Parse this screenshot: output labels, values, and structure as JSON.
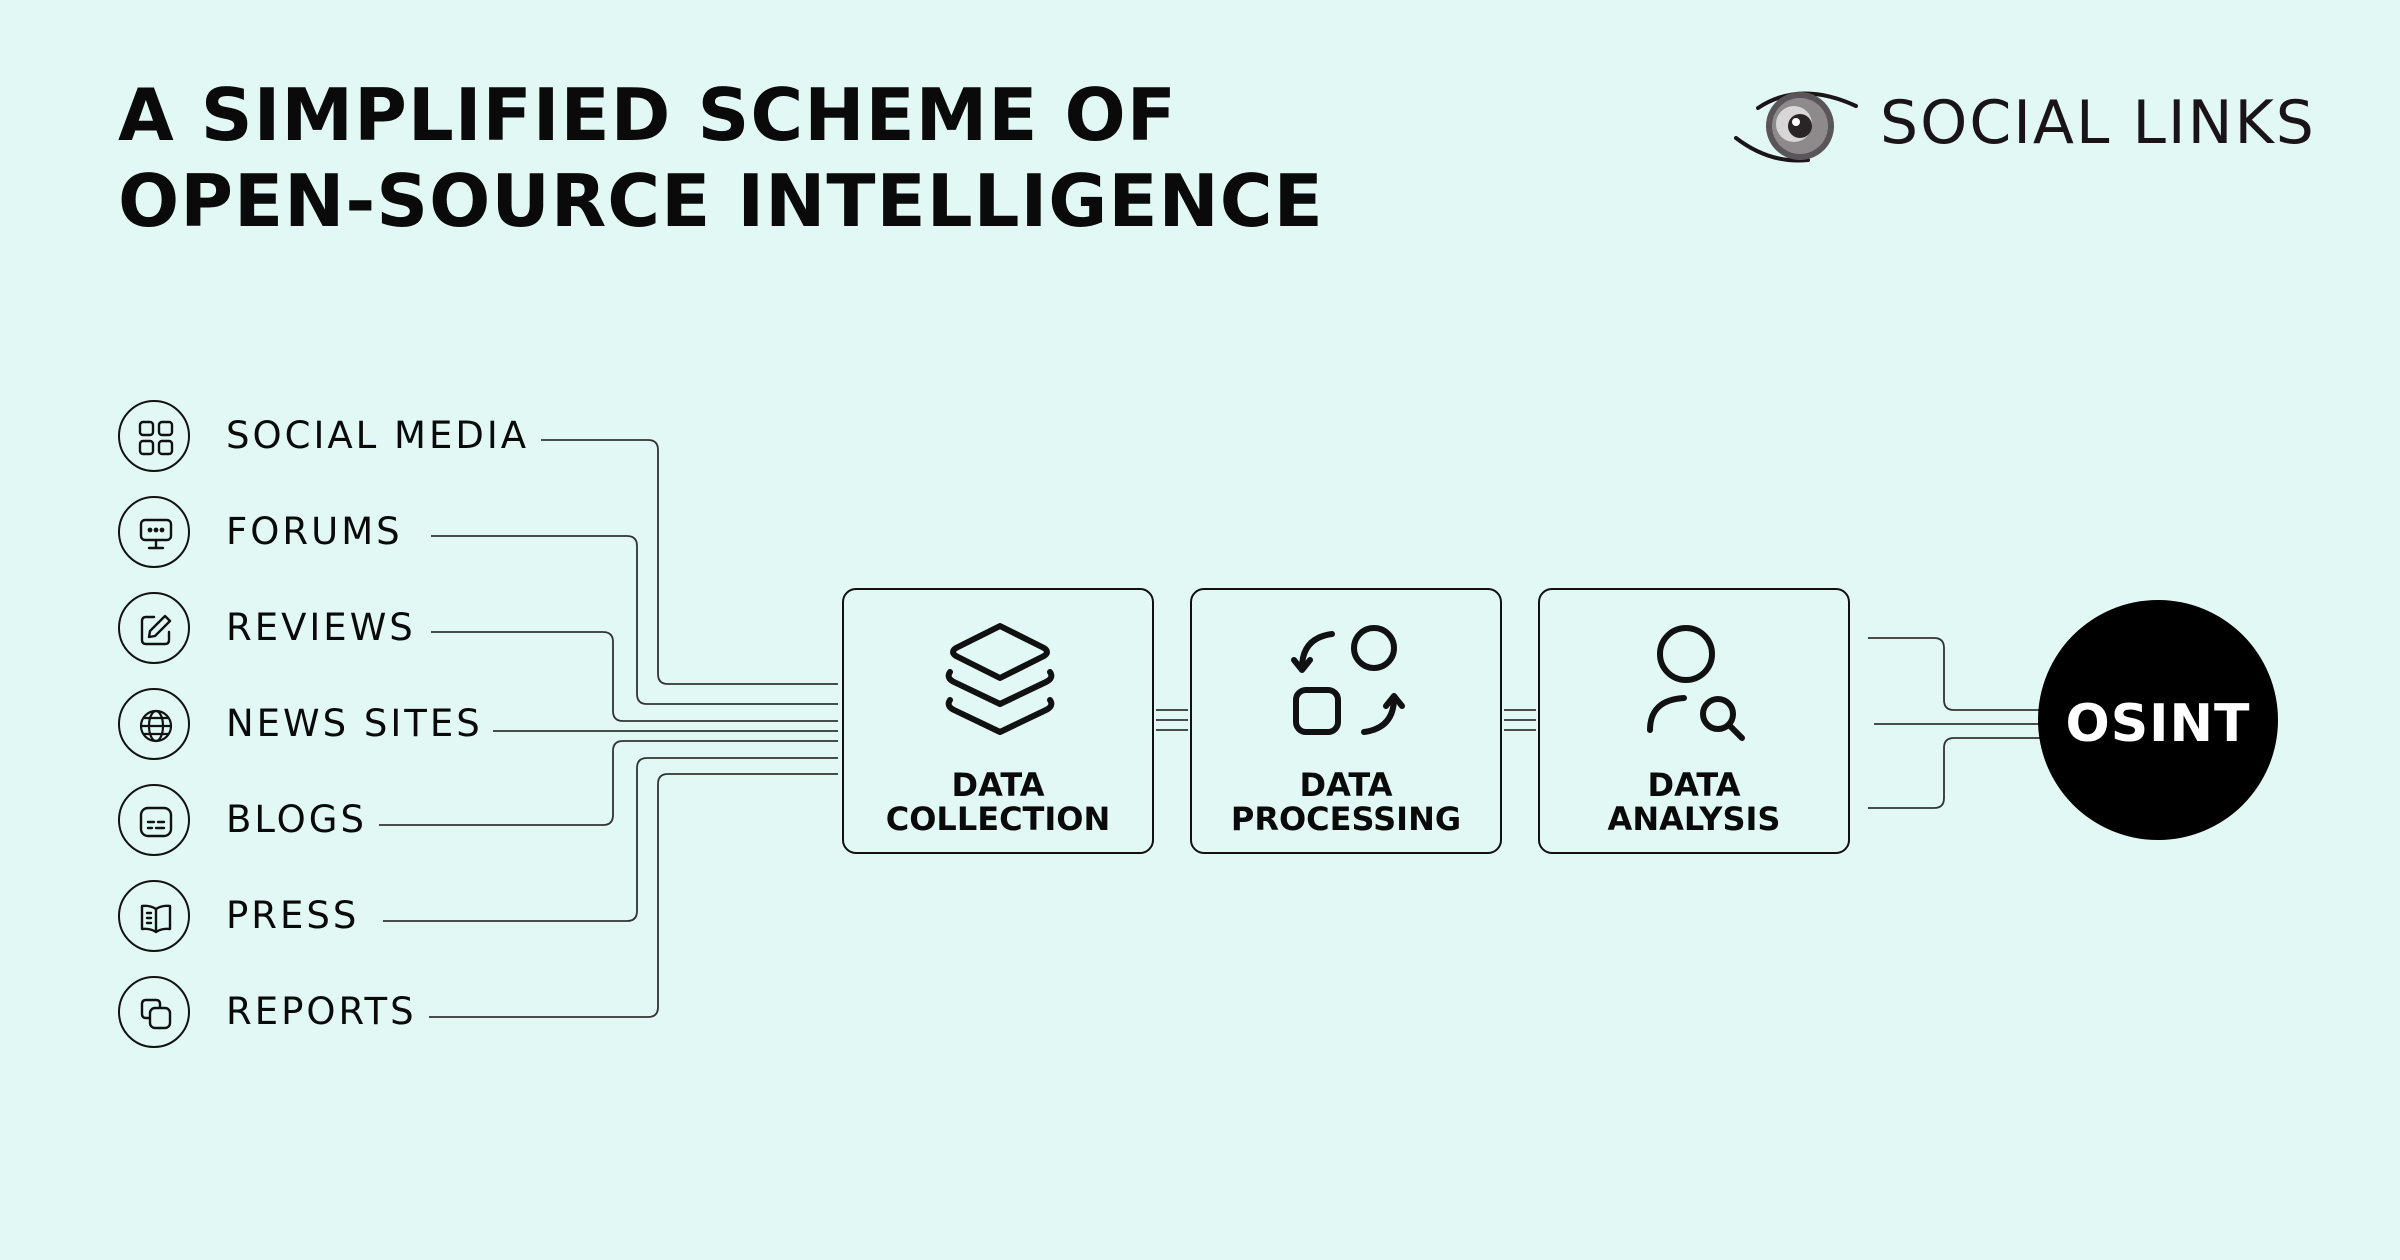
{
  "title": {
    "line1": "A SIMPLIFIED SCHEME OF",
    "line2": "OPEN-SOURCE INTELLIGENCE"
  },
  "logo": {
    "text": "SOCIAL LINKS",
    "icon": "eye-icon"
  },
  "sources": [
    {
      "label": "SOCIAL MEDIA",
      "icon": "grid-icon"
    },
    {
      "label": "FORUMS",
      "icon": "chat-monitor-icon"
    },
    {
      "label": "REVIEWS",
      "icon": "edit-icon"
    },
    {
      "label": "NEWS SITES",
      "icon": "globe-icon"
    },
    {
      "label": "BLOGS",
      "icon": "text-box-icon"
    },
    {
      "label": "PRESS",
      "icon": "book-icon"
    },
    {
      "label": "REPORTS",
      "icon": "copy-icon"
    }
  ],
  "stages": [
    {
      "line1": "DATA",
      "line2": "COLLECTION",
      "icon": "layers-icon"
    },
    {
      "line1": "DATA",
      "line2": "PROCESSING",
      "icon": "shapes-refresh-icon"
    },
    {
      "line1": "DATA",
      "line2": "ANALYSIS",
      "icon": "user-search-icon"
    }
  ],
  "result": {
    "label": "OSINT"
  },
  "colors": {
    "background": "#e1f8f4",
    "ink": "#0a0a0a",
    "result_fill": "#000000"
  }
}
